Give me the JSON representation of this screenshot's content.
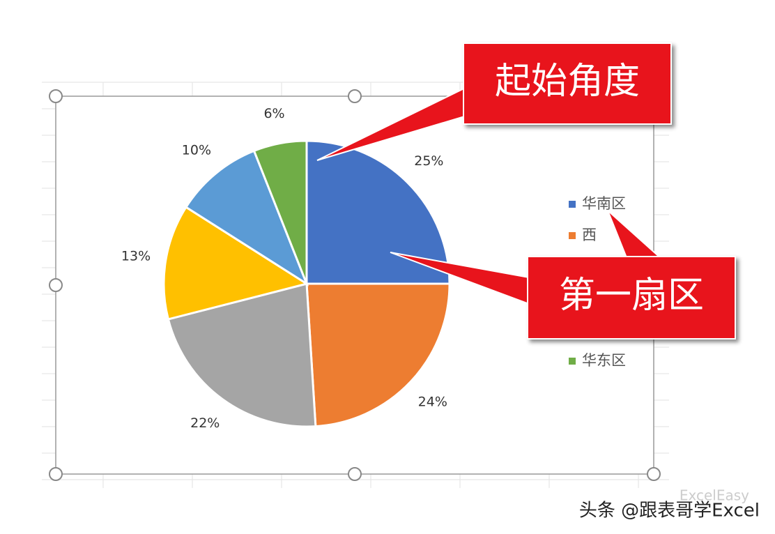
{
  "chart_data": {
    "type": "pie",
    "categories": [
      "华南区",
      "西",
      null,
      null,
      null,
      "华东区"
    ],
    "values": [
      25,
      24,
      22,
      13,
      10,
      6
    ],
    "value_labels": [
      "25%",
      "24%",
      "22%",
      "13%",
      "10%",
      "6%"
    ],
    "colors": [
      "#4472c4",
      "#ed7d31",
      "#a5a5a5",
      "#ffc000",
      "#5b9bd5",
      "#70ad47"
    ],
    "legend": "right"
  },
  "callouts": [
    "起始角度",
    "第一扇区"
  ],
  "watermark": {
    "source": "头条 @跟表哥学Excel",
    "logo": "ExcelEasy"
  }
}
